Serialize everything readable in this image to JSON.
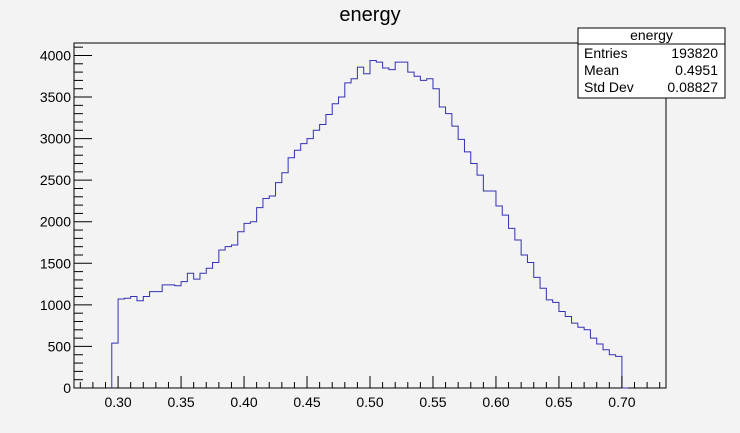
{
  "chart_data": {
    "type": "bar",
    "title": "energy",
    "xlabel": "",
    "ylabel": "",
    "xlim": [
      0.265,
      0.735
    ],
    "ylim": [
      0,
      4150
    ],
    "x_ticks": [
      "0.30",
      "0.35",
      "0.40",
      "0.45",
      "0.50",
      "0.55",
      "0.60",
      "0.65",
      "0.70"
    ],
    "y_ticks": [
      "0",
      "500",
      "1000",
      "1500",
      "2000",
      "2500",
      "3000",
      "3500",
      "4000"
    ],
    "grid": false,
    "histogram": {
      "bin_low": 0.295,
      "bin_width": 0.005,
      "values": [
        540,
        1070,
        1080,
        1100,
        1050,
        1100,
        1160,
        1160,
        1240,
        1240,
        1230,
        1280,
        1380,
        1310,
        1380,
        1440,
        1510,
        1660,
        1700,
        1720,
        1880,
        1980,
        2000,
        2170,
        2280,
        2310,
        2470,
        2590,
        2770,
        2860,
        2940,
        3000,
        3100,
        3170,
        3290,
        3420,
        3500,
        3670,
        3720,
        3860,
        3780,
        3940,
        3920,
        3850,
        3830,
        3920,
        3920,
        3800,
        3750,
        3700,
        3720,
        3600,
        3380,
        3300,
        3150,
        2990,
        2840,
        2700,
        2560,
        2370,
        2370,
        2190,
        2080,
        1920,
        1780,
        1600,
        1510,
        1330,
        1200,
        1060,
        1030,
        920,
        860,
        780,
        730,
        700,
        600,
        530,
        460,
        400,
        380,
        0
      ]
    },
    "stats_box": {
      "title": "energy",
      "rows": [
        {
          "label": "Entries",
          "value": "193820"
        },
        {
          "label": "Mean",
          "value": "0.4951"
        },
        {
          "label": "Std Dev",
          "value": "0.08827"
        }
      ]
    },
    "line_color": "#3232b4"
  }
}
